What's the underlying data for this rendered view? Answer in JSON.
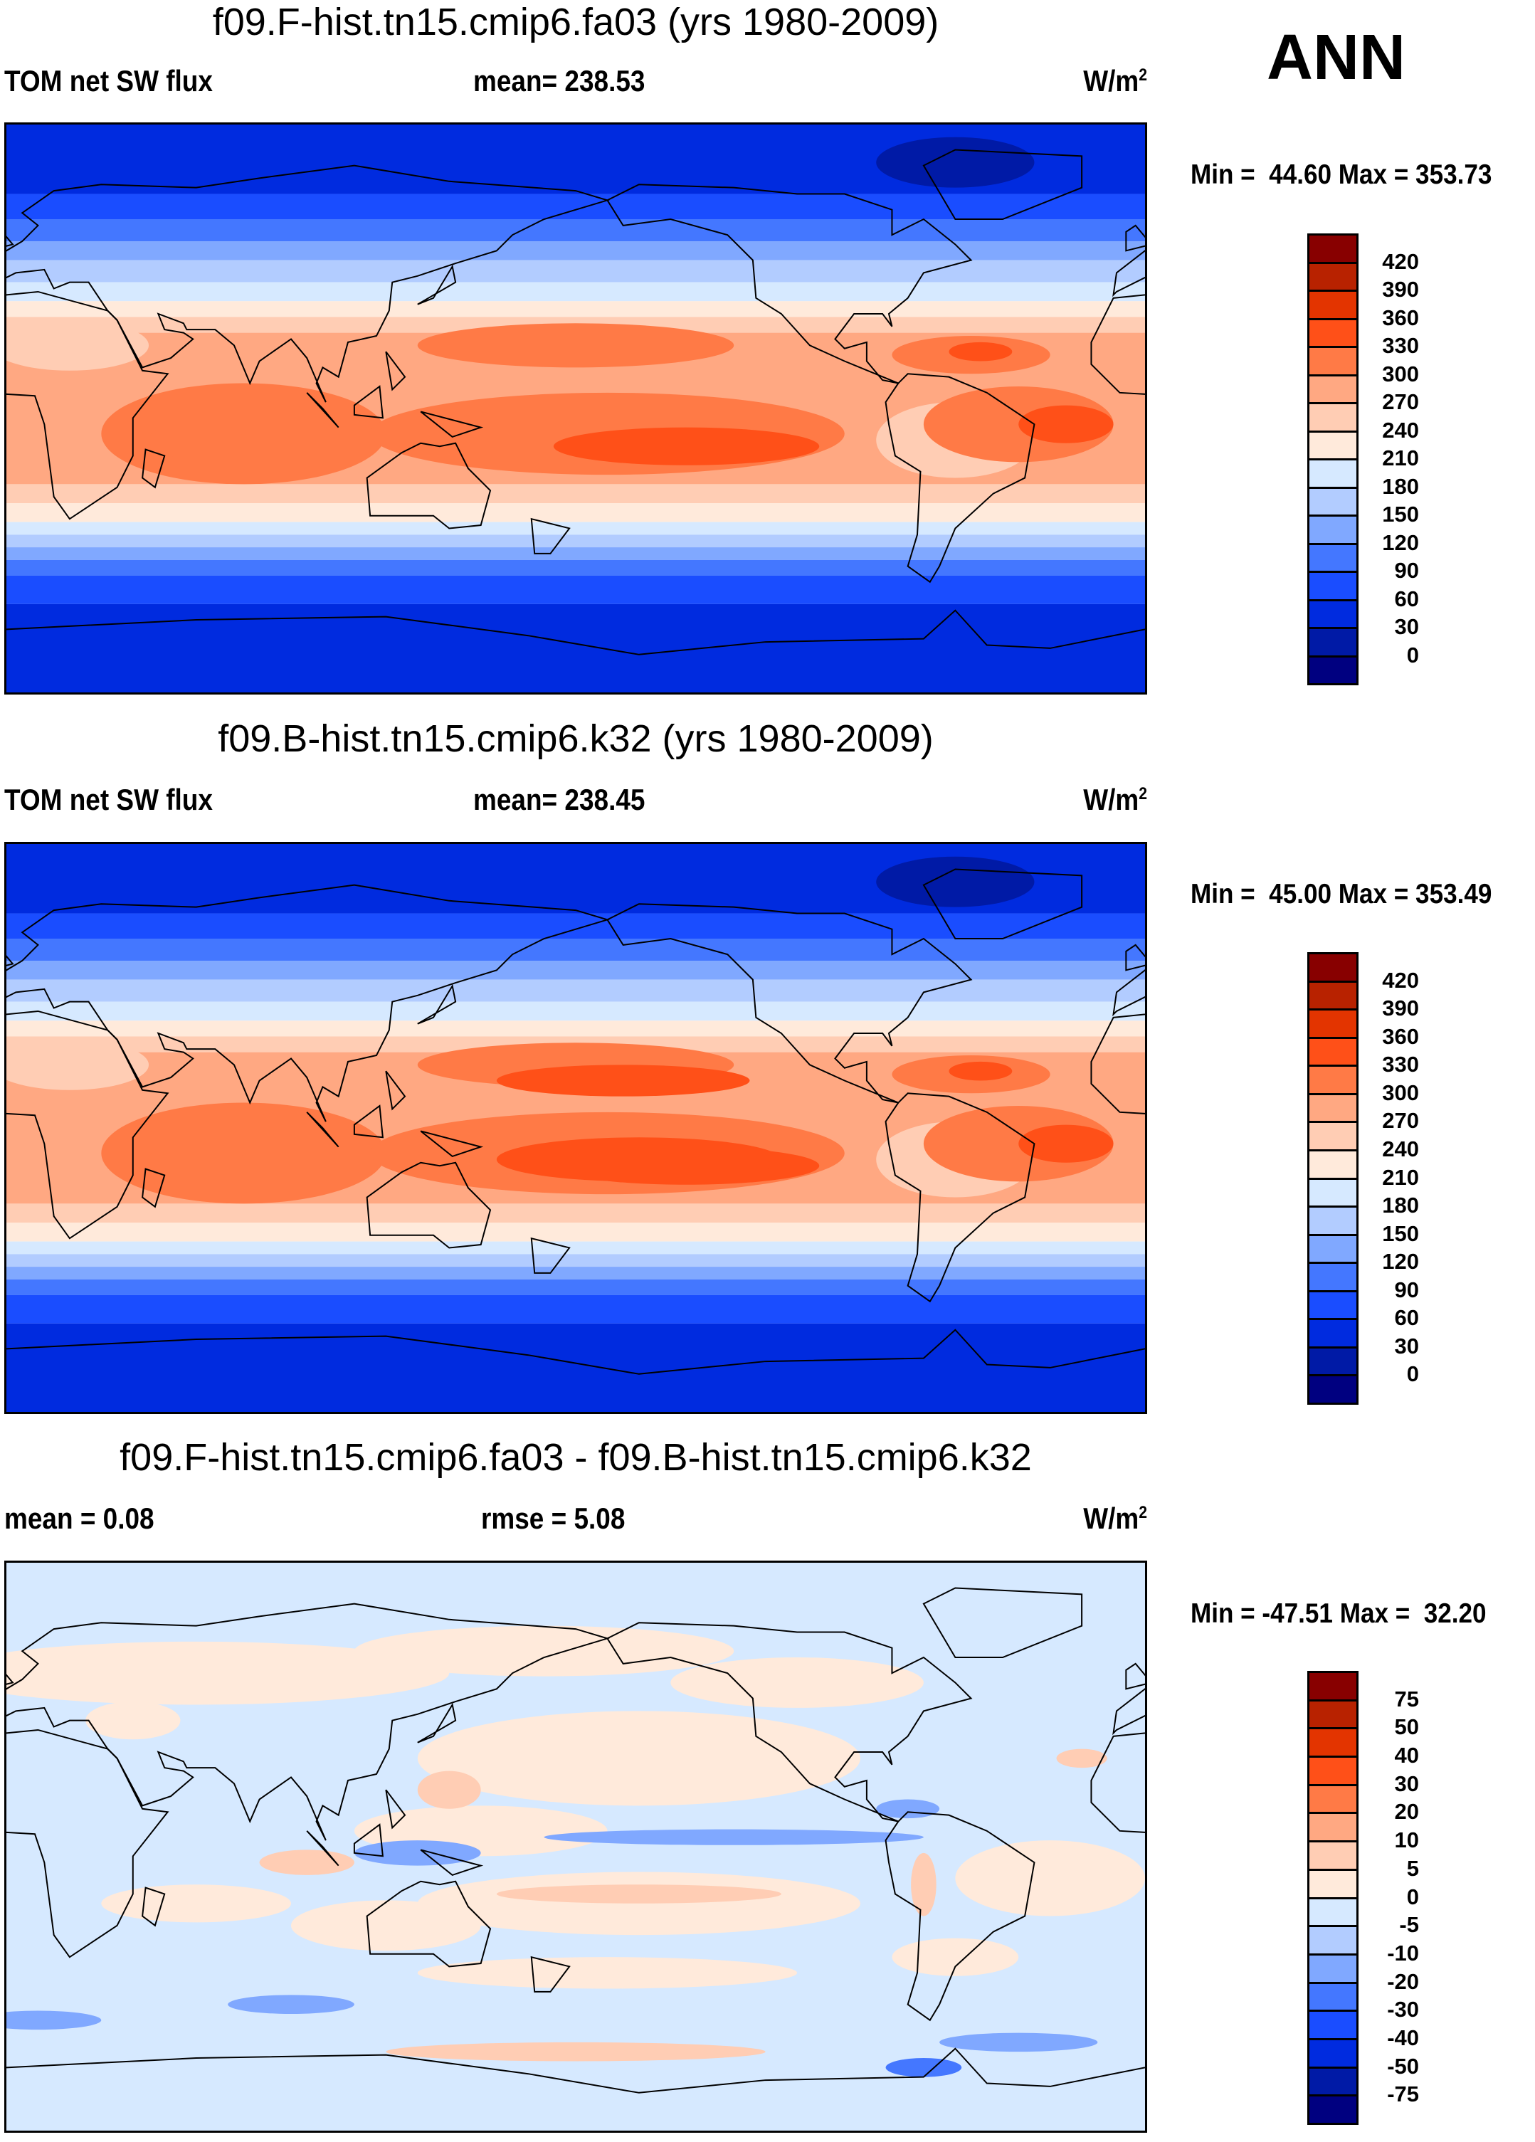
{
  "season": "ANN",
  "colors_abs": [
    "#880000",
    "#b82200",
    "#e33400",
    "#ff5018",
    "#ff7a46",
    "#ffa882",
    "#ffcdb4",
    "#ffeadb",
    "#d6e9ff",
    "#b2ccff",
    "#80a8ff",
    "#4477ff",
    "#1a4dff",
    "#002bdf",
    "#001aa6",
    "#000080"
  ],
  "chart_data": [
    {
      "type": "heatmap",
      "title": "f09.F-hist.tn15.cmip6.fa03 (yrs 1980-2009)",
      "left_label": "TOM net SW flux",
      "center_label": "mean= 238.53",
      "units": "W/m",
      "units_exp": "2",
      "minmax": "Min =  44.60 Max = 353.73",
      "colorbar_labels": [
        "420",
        "390",
        "360",
        "330",
        "300",
        "270",
        "240",
        "210",
        "180",
        "150",
        "120",
        "90",
        "60",
        "30",
        "0"
      ]
    },
    {
      "type": "heatmap",
      "title": "f09.B-hist.tn15.cmip6.k32 (yrs 1980-2009)",
      "left_label": "TOM net SW flux",
      "center_label": "mean= 238.45",
      "units": "W/m",
      "units_exp": "2",
      "minmax": "Min =  45.00 Max = 353.49",
      "colorbar_labels": [
        "420",
        "390",
        "360",
        "330",
        "300",
        "270",
        "240",
        "210",
        "180",
        "150",
        "120",
        "90",
        "60",
        "30",
        "0"
      ]
    },
    {
      "type": "heatmap",
      "title": "f09.F-hist.tn15.cmip6.fa03 - f09.B-hist.tn15.cmip6.k32",
      "left_label": "mean =   0.08",
      "center_label": "rmse =   5.08",
      "units": "W/m",
      "units_exp": "2",
      "minmax": "Min = -47.51 Max =  32.20",
      "colorbar_labels": [
        "75",
        "50",
        "40",
        "30",
        "20",
        "10",
        "5",
        "0",
        "-5",
        "-10",
        "-20",
        "-30",
        "-40",
        "-50",
        "-75"
      ]
    }
  ]
}
